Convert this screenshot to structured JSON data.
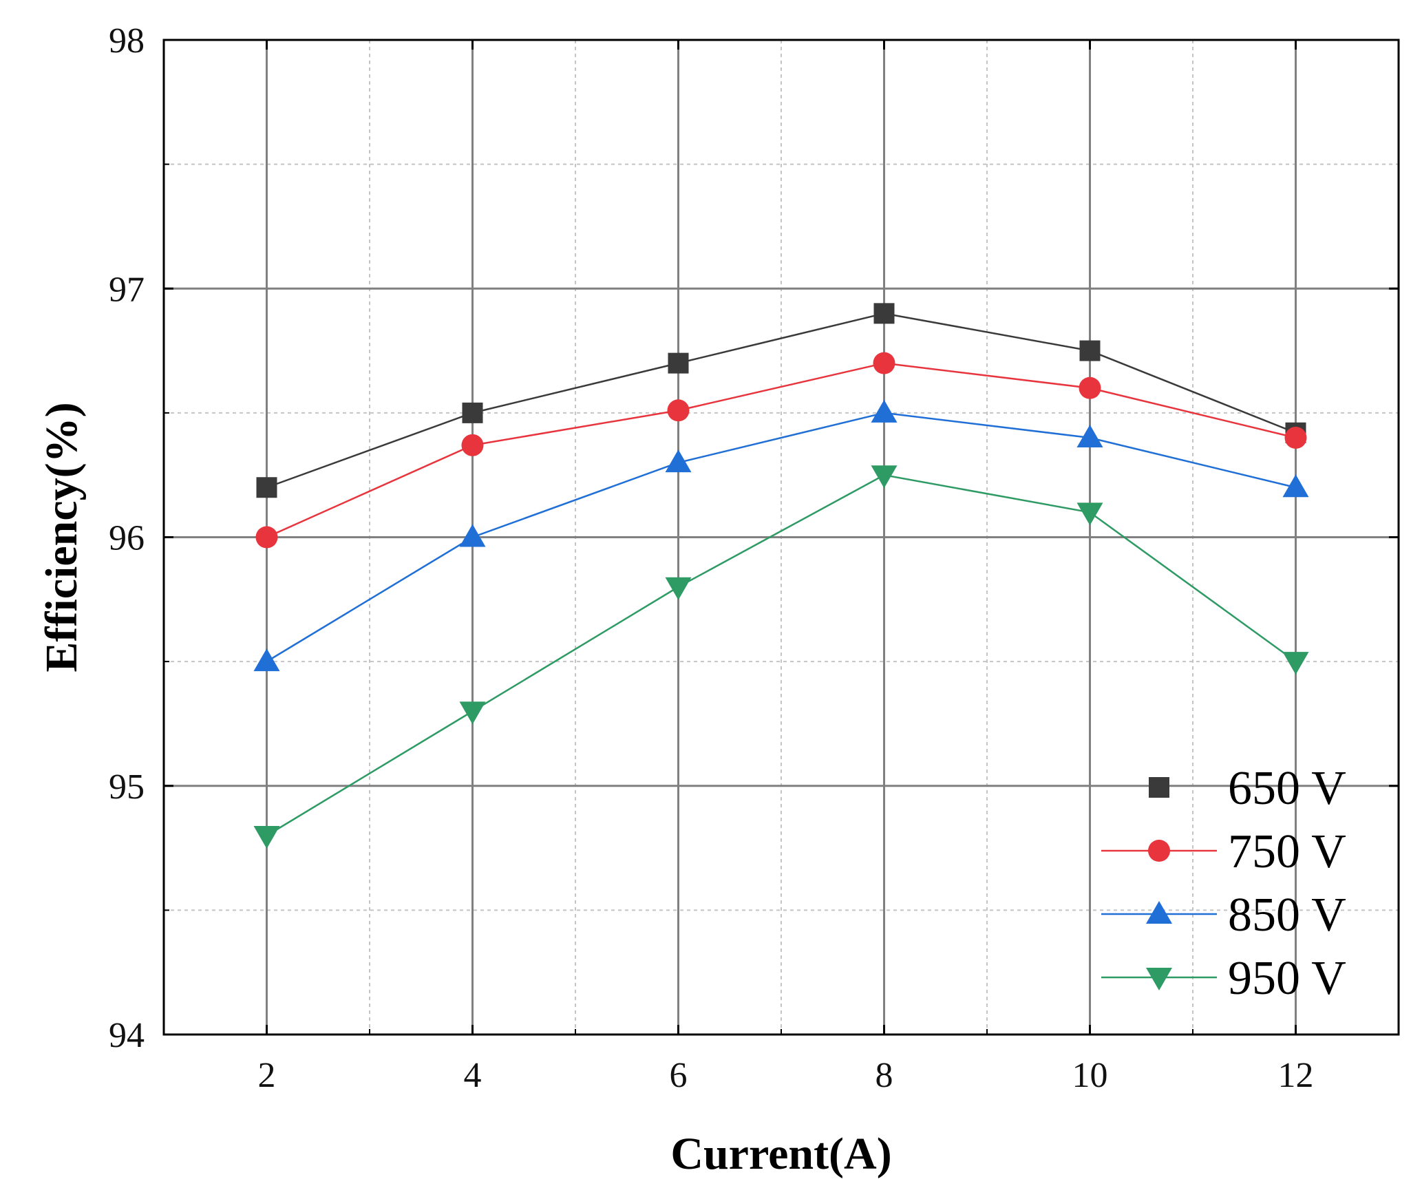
{
  "chart_data": {
    "type": "line",
    "title": "",
    "xlabel": "Current(A)",
    "ylabel": "Efficiency(%)",
    "x": [
      2,
      4,
      6,
      8,
      10,
      12
    ],
    "xlim": [
      1,
      13
    ],
    "ylim": [
      94,
      98
    ],
    "xticks": [
      "2",
      "4",
      "6",
      "8",
      "10",
      "12"
    ],
    "yticks": [
      "94",
      "95",
      "96",
      "97",
      "98"
    ],
    "grid": true,
    "legend_position": "bottom-right",
    "series": [
      {
        "name": "650 V",
        "marker": "square",
        "color": "#3a3a3a",
        "values": [
          96.2,
          96.5,
          96.7,
          96.9,
          96.75,
          96.42
        ]
      },
      {
        "name": "750 V",
        "marker": "circle",
        "color": "#e8343c",
        "values": [
          96.0,
          96.37,
          96.51,
          96.7,
          96.6,
          96.4
        ]
      },
      {
        "name": "850 V",
        "marker": "triangle-up",
        "color": "#1f6fd6",
        "values": [
          95.5,
          96.0,
          96.3,
          96.5,
          96.4,
          96.2
        ]
      },
      {
        "name": "950 V",
        "marker": "triangle-down",
        "color": "#2e9a64",
        "values": [
          94.8,
          95.3,
          95.8,
          96.25,
          96.1,
          95.5
        ]
      }
    ]
  }
}
